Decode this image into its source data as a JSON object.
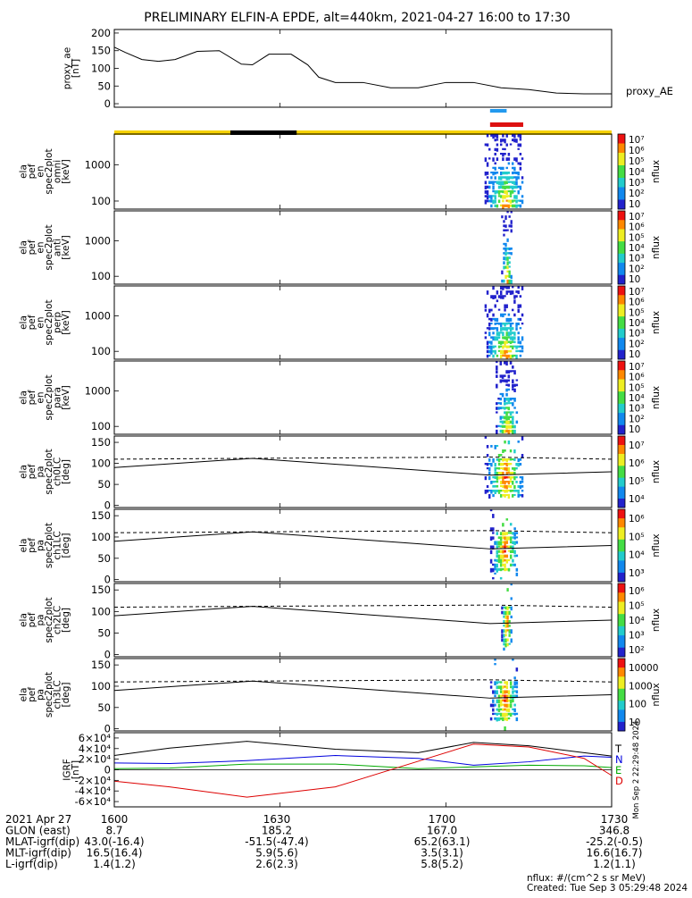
{
  "title": "PRELIMINARY ELFIN-A EPDE, alt=440km, 2021-04-27 16:00 to 17:30",
  "colors": {
    "status_bar": "#f6d200",
    "eclipse_bar": "#000000",
    "science_zone": "#2299ee",
    "coverage_bar": "#dd1111",
    "bz": "#000000",
    "bn": "#0000dd",
    "be": "#00aa00",
    "bd": "#dd0000"
  },
  "status": {
    "eclipse_span": [
      "16:21",
      "16:33"
    ],
    "science_span": [
      "17:08",
      "17:11"
    ],
    "coverage_span": [
      "17:08",
      "17:14"
    ]
  },
  "chart_data": [
    {
      "type": "line",
      "name": "proxy_ae",
      "ylabel_lines": [
        "proxy_ae",
        "[nT]"
      ],
      "ylim": [
        -10,
        210
      ],
      "yticks": [
        "0",
        "50",
        "100",
        "150",
        "200"
      ],
      "legend": "proxy_AE",
      "x": [
        "16:00",
        "16:02",
        "16:05",
        "16:08",
        "16:11",
        "16:15",
        "16:19",
        "16:23",
        "16:25",
        "16:28",
        "16:32",
        "16:35",
        "16:37",
        "16:40",
        "16:45",
        "16:50",
        "16:55",
        "17:00",
        "17:05",
        "17:10",
        "17:15",
        "17:20",
        "17:25",
        "17:30"
      ],
      "y": [
        160,
        145,
        125,
        120,
        125,
        148,
        150,
        112,
        110,
        140,
        140,
        110,
        75,
        60,
        60,
        45,
        45,
        60,
        60,
        45,
        40,
        30,
        28,
        28
      ]
    },
    {
      "type": "heatmap",
      "name": "omni",
      "ylabel_lines": [
        "ela",
        "pef",
        "en",
        "spec2plot",
        "omni",
        "[keV]"
      ],
      "yscale": "log",
      "ylim": [
        60,
        7000
      ],
      "yticks": [
        "100",
        "1000"
      ],
      "colorbar": {
        "label": "nflux",
        "scale": "log",
        "ticks": [
          "10",
          "10²",
          "10³",
          "10⁴",
          "10⁵",
          "10⁶",
          "10⁷"
        ]
      },
      "active_interval": [
        "17:07",
        "17:14"
      ]
    },
    {
      "type": "heatmap",
      "name": "anti",
      "ylabel_lines": [
        "ela",
        "pef",
        "en",
        "spec2plot",
        "anti",
        "[keV]"
      ],
      "yscale": "log",
      "ylim": [
        60,
        7000
      ],
      "yticks": [
        "100",
        "1000"
      ],
      "colorbar": {
        "label": "nflux",
        "scale": "log",
        "ticks": [
          "10",
          "10²",
          "10³",
          "10⁴",
          "10⁵",
          "10⁶",
          "10⁷"
        ]
      },
      "active_interval": [
        "17:10",
        "17:12"
      ]
    },
    {
      "type": "heatmap",
      "name": "perp",
      "ylabel_lines": [
        "ela",
        "pef",
        "en",
        "spec2plot",
        "perp",
        "[keV]"
      ],
      "yscale": "log",
      "ylim": [
        60,
        7000
      ],
      "yticks": [
        "100",
        "1000"
      ],
      "colorbar": {
        "label": "nflux",
        "scale": "log",
        "ticks": [
          "10",
          "10²",
          "10³",
          "10⁴",
          "10⁵",
          "10⁶",
          "10⁷"
        ]
      },
      "active_interval": [
        "17:07",
        "17:14"
      ]
    },
    {
      "type": "heatmap",
      "name": "para",
      "ylabel_lines": [
        "ela",
        "pef",
        "en",
        "spec2plot",
        "para",
        "[keV]"
      ],
      "yscale": "log",
      "ylim": [
        60,
        7000
      ],
      "yticks": [
        "100",
        "1000"
      ],
      "colorbar": {
        "label": "nflux",
        "scale": "log",
        "ticks": [
          "10",
          "10²",
          "10³",
          "10⁴",
          "10⁵",
          "10⁶",
          "10⁷"
        ]
      },
      "active_interval": [
        "17:09",
        "17:13"
      ]
    },
    {
      "type": "heatmap",
      "name": "ch0LC",
      "ylabel_lines": [
        "ela",
        "pef",
        "pa",
        "spec2plot",
        "ch0LC",
        "[deg]"
      ],
      "ylim": [
        -5,
        165
      ],
      "yticks": [
        "0",
        "50",
        "100",
        "150"
      ],
      "colorbar": {
        "label": "nflux",
        "scale": "log",
        "ticks": [
          "10⁴",
          "10⁵",
          "10⁶",
          "10⁷"
        ]
      },
      "active_interval": [
        "17:07",
        "17:14"
      ],
      "lc_solid": [
        [
          "16:00",
          90
        ],
        [
          "16:25",
          112
        ],
        [
          "17:08",
          72
        ],
        [
          "17:30",
          80
        ]
      ],
      "lc_dashed": [
        [
          "16:00",
          110
        ],
        [
          "16:25",
          112
        ],
        [
          "17:08",
          115
        ],
        [
          "17:30",
          110
        ]
      ]
    },
    {
      "type": "heatmap",
      "name": "ch1LC",
      "ylabel_lines": [
        "ela",
        "pef",
        "pa",
        "spec2plot",
        "ch1LC",
        "[deg]"
      ],
      "ylim": [
        -5,
        165
      ],
      "yticks": [
        "0",
        "50",
        "100",
        "150"
      ],
      "colorbar": {
        "label": "nflux",
        "scale": "log",
        "ticks": [
          "10³",
          "10⁴",
          "10⁵",
          "10⁶"
        ]
      },
      "active_interval": [
        "17:08",
        "17:13"
      ],
      "lc_solid": [
        [
          "16:00",
          90
        ],
        [
          "16:25",
          112
        ],
        [
          "17:08",
          72
        ],
        [
          "17:30",
          80
        ]
      ],
      "lc_dashed": [
        [
          "16:00",
          110
        ],
        [
          "16:25",
          112
        ],
        [
          "17:08",
          115
        ],
        [
          "17:30",
          110
        ]
      ]
    },
    {
      "type": "heatmap",
      "name": "ch2LC",
      "ylabel_lines": [
        "ela",
        "pef",
        "pa",
        "spec2plot",
        "ch2LC",
        "[deg]"
      ],
      "ylim": [
        -5,
        165
      ],
      "yticks": [
        "0",
        "50",
        "100",
        "150"
      ],
      "colorbar": {
        "label": "nflux",
        "scale": "log",
        "ticks": [
          "10²",
          "10³",
          "10⁴",
          "10⁵",
          "10⁶"
        ]
      },
      "active_interval": [
        "17:10",
        "17:12"
      ],
      "lc_solid": [
        [
          "16:00",
          90
        ],
        [
          "16:25",
          112
        ],
        [
          "17:08",
          72
        ],
        [
          "17:30",
          80
        ]
      ],
      "lc_dashed": [
        [
          "16:00",
          110
        ],
        [
          "16:25",
          112
        ],
        [
          "17:08",
          115
        ],
        [
          "17:30",
          110
        ]
      ]
    },
    {
      "type": "heatmap",
      "name": "ch3LC",
      "ylabel_lines": [
        "ela",
        "pef",
        "pa",
        "spec2plot",
        "ch3LC",
        "[deg]"
      ],
      "ylim": [
        -5,
        165
      ],
      "yticks": [
        "0",
        "50",
        "100",
        "150"
      ],
      "colorbar": {
        "label": "nflux",
        "scale": "log",
        "ticks": [
          "10",
          "100",
          "1000",
          "10000"
        ]
      },
      "active_interval": [
        "17:08",
        "17:13"
      ],
      "lc_solid": [
        [
          "16:00",
          90
        ],
        [
          "16:25",
          112
        ],
        [
          "17:08",
          72
        ],
        [
          "17:30",
          80
        ]
      ],
      "lc_dashed": [
        [
          "16:00",
          110
        ],
        [
          "16:25",
          112
        ],
        [
          "17:08",
          115
        ],
        [
          "17:30",
          110
        ]
      ]
    },
    {
      "type": "line",
      "name": "IGRF",
      "ylabel_lines": [
        "IGRF",
        "[nT]"
      ],
      "ylim": [
        -65000,
        65000
      ],
      "yticks": [
        "-6×10⁴",
        "-4×10⁴",
        "-2×10⁴",
        "0",
        "2×10⁴",
        "4×10⁴",
        "6×10⁴"
      ],
      "legend": [
        "T",
        "N",
        "E",
        "D"
      ],
      "series": [
        {
          "name": "T",
          "x": [
            "16:00",
            "16:10",
            "16:24",
            "16:40",
            "16:55",
            "17:05",
            "17:15",
            "17:25",
            "17:30"
          ],
          "y": [
            25000,
            38000,
            50000,
            36000,
            30000,
            48000,
            42000,
            30000,
            24000
          ]
        },
        {
          "name": "N",
          "x": [
            "16:00",
            "16:10",
            "16:24",
            "16:40",
            "16:55",
            "17:05",
            "17:15",
            "17:25",
            "17:30"
          ],
          "y": [
            12000,
            11000,
            16000,
            25000,
            20000,
            8000,
            14000,
            24000,
            22000
          ]
        },
        {
          "name": "E",
          "x": [
            "16:00",
            "16:10",
            "16:24",
            "16:40",
            "16:55",
            "17:05",
            "17:15",
            "17:25",
            "17:30"
          ],
          "y": [
            2000,
            3000,
            10000,
            10000,
            2000,
            5000,
            8000,
            7000,
            4000
          ]
        },
        {
          "name": "D",
          "x": [
            "16:00",
            "16:10",
            "16:24",
            "16:40",
            "16:55",
            "17:05",
            "17:15",
            "17:25",
            "17:30"
          ],
          "y": [
            -20000,
            -30000,
            -48000,
            -30000,
            15000,
            45000,
            40000,
            20000,
            -10000
          ]
        }
      ],
      "side_note": "Mon Sep  2 22:29:48 2024"
    }
  ],
  "xticks": [
    "1600",
    "1630",
    "1700",
    "1730"
  ],
  "footer": {
    "rows": [
      {
        "label": "2021 Apr 27",
        "values": [
          "1600",
          "1630",
          "1700",
          "1730"
        ]
      },
      {
        "label": "GLON (east)",
        "values": [
          "8.7",
          "185.2",
          "167.0",
          "346.8"
        ]
      },
      {
        "label": "MLAT-igrf(dip)",
        "values": [
          "43.0(-16.4)",
          "-51.5(-47.4)",
          "65.2(63.1)",
          "-25.2(-0.5)"
        ]
      },
      {
        "label": "MLT-igrf(dip)",
        "values": [
          "16.5(16.4)",
          "5.9(5.6)",
          "3.5(3.1)",
          "16.6(16.7)"
        ]
      },
      {
        "label": "L-igrf(dip)",
        "values": [
          "1.4(1.2)",
          "2.6(2.3)",
          "5.8(5.2)",
          "1.2(1.1)"
        ]
      }
    ],
    "units_note": "nflux: #/(cm^2 s sr MeV)",
    "created": "Created: Tue Sep  3 05:29:48 2024"
  }
}
